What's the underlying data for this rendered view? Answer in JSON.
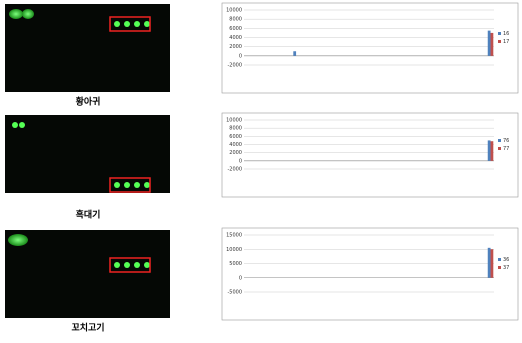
{
  "panels": [
    {
      "caption": "황아귀"
    },
    {
      "caption": "흑대기"
    },
    {
      "caption": "꼬치고기"
    }
  ],
  "chart_data": [
    {
      "type": "bar",
      "categories": [
        null,
        null,
        null,
        null,
        null,
        null,
        null,
        null,
        null,
        null,
        null,
        null,
        null,
        null,
        null,
        null,
        null,
        null,
        null,
        null,
        null,
        null,
        null,
        null,
        null,
        null,
        null,
        null,
        null,
        null,
        null,
        null,
        null,
        null,
        null,
        null
      ],
      "series": [
        {
          "name": "16",
          "color": "#4f81bd",
          "values": [
            0,
            0,
            0,
            0,
            0,
            0,
            0,
            1000,
            0,
            0,
            0,
            0,
            0,
            0,
            0,
            0,
            0,
            0,
            0,
            0,
            0,
            0,
            0,
            0,
            0,
            0,
            0,
            0,
            0,
            0,
            0,
            0,
            0,
            0,
            0,
            5500
          ]
        },
        {
          "name": "17",
          "color": "#c0504d",
          "values": [
            0,
            0,
            0,
            0,
            0,
            0,
            0,
            0,
            0,
            0,
            0,
            0,
            0,
            0,
            0,
            0,
            0,
            0,
            0,
            0,
            0,
            0,
            0,
            0,
            0,
            0,
            0,
            0,
            0,
            0,
            0,
            0,
            0,
            0,
            0,
            5000
          ]
        }
      ],
      "ylim": [
        -2000,
        10000
      ],
      "yticks": [
        -2000,
        0,
        2000,
        4000,
        6000,
        8000,
        10000
      ],
      "grid": true
    },
    {
      "type": "bar",
      "categories": [
        null,
        null,
        null,
        null,
        null,
        null,
        null,
        null,
        null,
        null,
        null,
        null,
        null,
        null,
        null,
        null,
        null,
        null,
        null,
        null,
        null,
        null,
        null,
        null,
        null,
        null,
        null,
        null,
        null,
        null,
        null,
        null,
        null,
        null,
        null,
        null
      ],
      "series": [
        {
          "name": "76",
          "color": "#4f81bd",
          "values": [
            0,
            0,
            0,
            0,
            0,
            0,
            0,
            0,
            0,
            0,
            0,
            0,
            0,
            0,
            0,
            0,
            0,
            0,
            0,
            0,
            0,
            0,
            0,
            0,
            0,
            0,
            0,
            0,
            0,
            0,
            0,
            0,
            0,
            0,
            0,
            5000
          ]
        },
        {
          "name": "77",
          "color": "#c0504d",
          "values": [
            0,
            0,
            0,
            0,
            0,
            0,
            0,
            0,
            0,
            0,
            0,
            0,
            0,
            0,
            0,
            0,
            0,
            0,
            0,
            0,
            0,
            0,
            0,
            0,
            0,
            0,
            0,
            0,
            0,
            0,
            0,
            0,
            0,
            0,
            0,
            4800
          ]
        }
      ],
      "ylim": [
        -2000,
        10000
      ],
      "yticks": [
        -2000,
        0,
        2000,
        4000,
        6000,
        8000,
        10000
      ],
      "grid": true
    },
    {
      "type": "bar",
      "categories": [
        null,
        null,
        null,
        null,
        null,
        null,
        null,
        null,
        null,
        null,
        null,
        null,
        null,
        null,
        null,
        null,
        null,
        null,
        null,
        null,
        null,
        null,
        null,
        null,
        null,
        null,
        null,
        null,
        null,
        null,
        null,
        null,
        null,
        null,
        null,
        null
      ],
      "series": [
        {
          "name": "36",
          "color": "#4f81bd",
          "values": [
            0,
            0,
            0,
            0,
            0,
            0,
            0,
            0,
            0,
            0,
            0,
            0,
            0,
            0,
            0,
            0,
            0,
            0,
            0,
            0,
            0,
            0,
            0,
            0,
            0,
            0,
            0,
            0,
            0,
            0,
            0,
            0,
            0,
            0,
            0,
            10500
          ]
        },
        {
          "name": "37",
          "color": "#c0504d",
          "values": [
            0,
            0,
            0,
            0,
            0,
            0,
            0,
            0,
            0,
            0,
            0,
            0,
            0,
            0,
            0,
            0,
            0,
            0,
            0,
            0,
            0,
            0,
            0,
            0,
            0,
            0,
            0,
            0,
            0,
            0,
            0,
            0,
            0,
            0,
            0,
            10000
          ]
        }
      ],
      "ylim": [
        -5000,
        15000
      ],
      "yticks": [
        -5000,
        0,
        5000,
        10000,
        15000
      ],
      "grid": true
    }
  ]
}
